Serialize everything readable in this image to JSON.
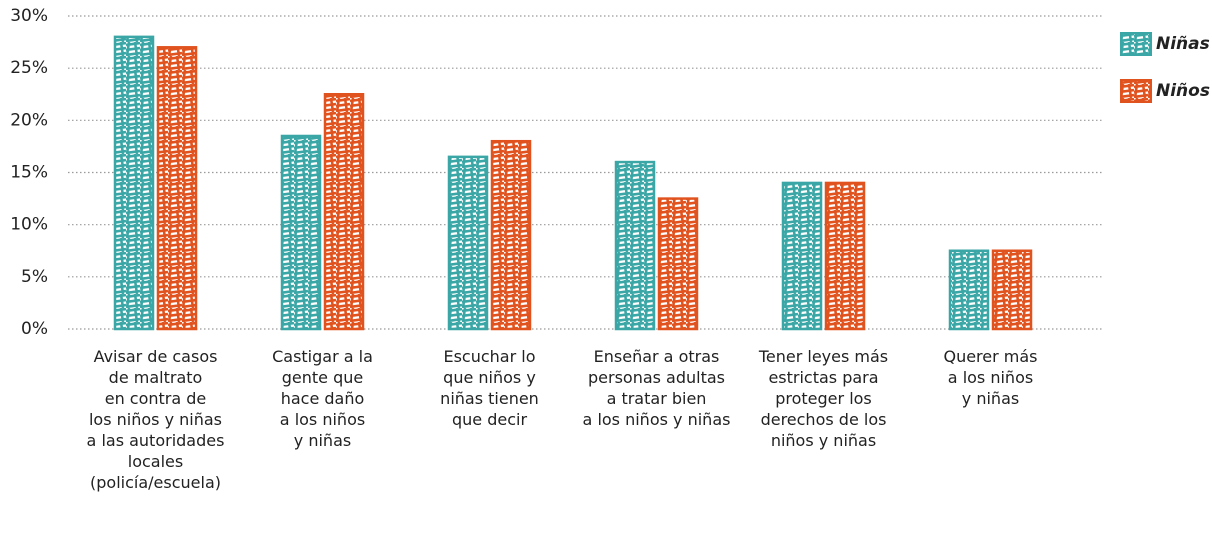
{
  "chart_data": {
    "type": "bar",
    "categories": [
      "Avisar de casos\nde maltrato\nen contra de\nlos niños y niñas\na las autoridades\nlocales\n(policía/escuela)",
      "Castigar a la\ngente que\nhace daño\na los niños\ny niñas",
      "Escuchar lo\nque niños y\nniñas tienen\nque decir",
      "Enseñar a otras\npersonas adultas\na tratar bien\na los niños y niñas",
      "Tener leyes más\nestrictas para\nproteger los\nderechos de los\nniños y niñas",
      "Querer más\na los niños\ny niñas"
    ],
    "series": [
      {
        "name": "Niñas",
        "color": "#3aa6a6",
        "values": [
          28,
          18.5,
          16.5,
          16,
          14,
          7.5
        ]
      },
      {
        "name": "Niños",
        "color": "#e0531f",
        "values": [
          27,
          22.5,
          18,
          12.5,
          14,
          7.5
        ]
      }
    ],
    "ylim": [
      0,
      30
    ],
    "yticks": [
      {
        "value": 0,
        "label": "0%"
      },
      {
        "value": 5,
        "label": "5%"
      },
      {
        "value": 10,
        "label": "10%"
      },
      {
        "value": 15,
        "label": "15%"
      },
      {
        "value": 20,
        "label": "20%"
      },
      {
        "value": 25,
        "label": "25%"
      },
      {
        "value": 30,
        "label": "30%"
      }
    ],
    "grid": true,
    "legend": "top-right"
  }
}
